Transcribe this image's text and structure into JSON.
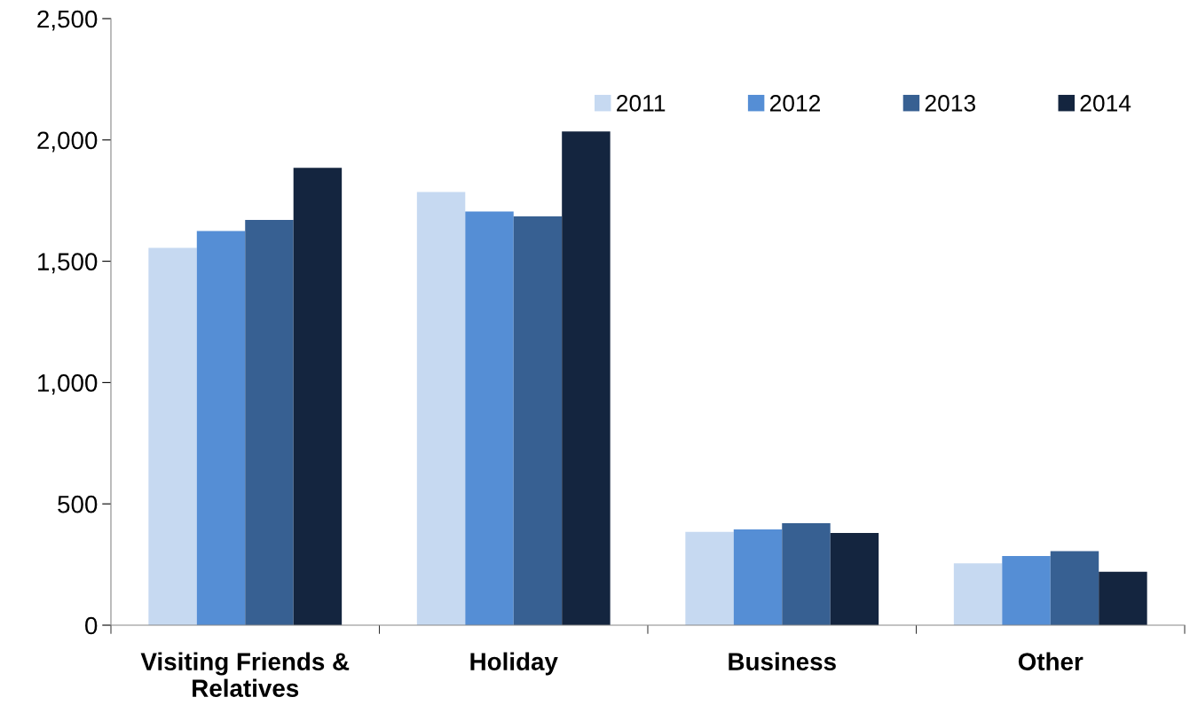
{
  "chart_data": {
    "type": "bar",
    "categories": [
      "Visiting Friends &\nRelatives",
      "Holiday",
      "Business",
      "Other"
    ],
    "series": [
      {
        "name": "2011",
        "color": "#c6d9f1",
        "values": [
          1555,
          1785,
          385,
          255
        ]
      },
      {
        "name": "2012",
        "color": "#558ed5",
        "values": [
          1625,
          1705,
          395,
          285
        ]
      },
      {
        "name": "2013",
        "color": "#376092",
        "values": [
          1670,
          1685,
          420,
          305
        ]
      },
      {
        "name": "2014",
        "color": "#14253f",
        "values": [
          1885,
          2035,
          380,
          220
        ]
      }
    ],
    "ylim": [
      0,
      2500
    ],
    "yticks": [
      {
        "value": 0,
        "label": "0"
      },
      {
        "value": 500,
        "label": "500"
      },
      {
        "value": 1000,
        "label": "1,000"
      },
      {
        "value": 1500,
        "label": "1,500"
      },
      {
        "value": 2000,
        "label": "2,000"
      },
      {
        "value": 2500,
        "label": "2,500"
      }
    ],
    "grid": false,
    "legend": "top right"
  }
}
